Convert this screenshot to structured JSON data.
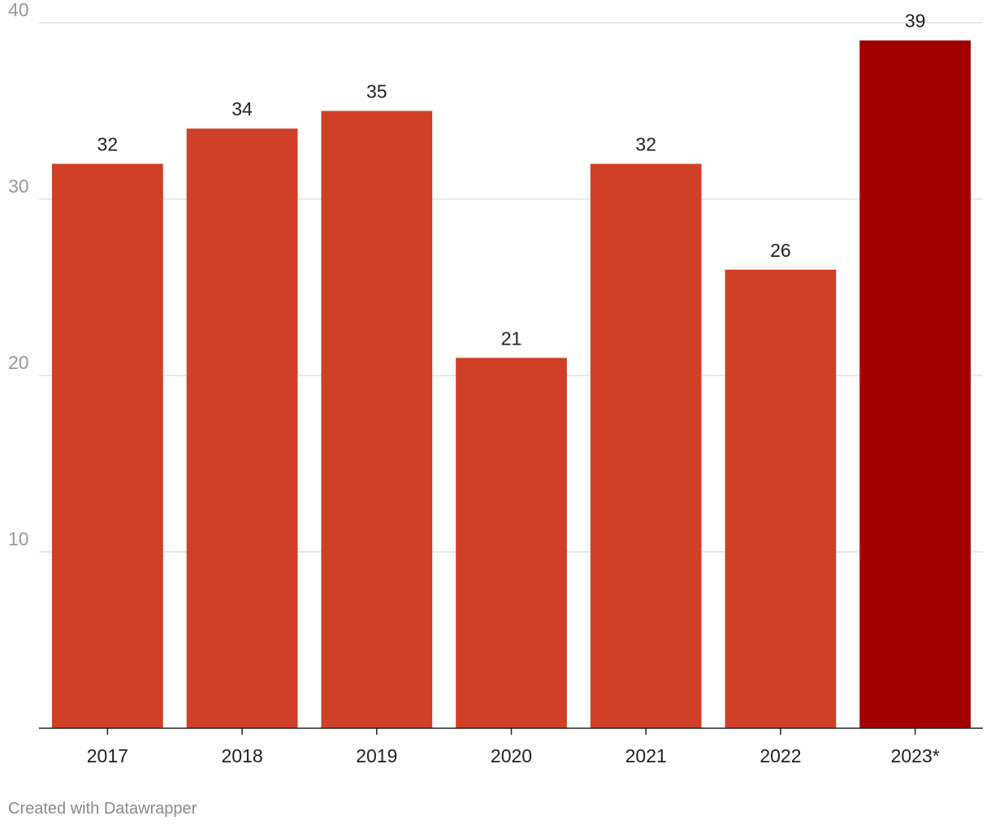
{
  "chart_data": {
    "type": "bar",
    "categories": [
      "2017",
      "2018",
      "2019",
      "2020",
      "2021",
      "2022",
      "2023*"
    ],
    "values": [
      32,
      34,
      35,
      21,
      32,
      26,
      39
    ],
    "title": "",
    "xlabel": "",
    "ylabel": "",
    "ylim": [
      0,
      40
    ],
    "yticks": [
      10,
      20,
      30,
      40
    ],
    "grid": true,
    "legend": "none",
    "bar_color": "#cf4027",
    "highlight_color": "#a10000",
    "highlight_category": "2023*"
  },
  "credit": "Created with Datawrapper"
}
